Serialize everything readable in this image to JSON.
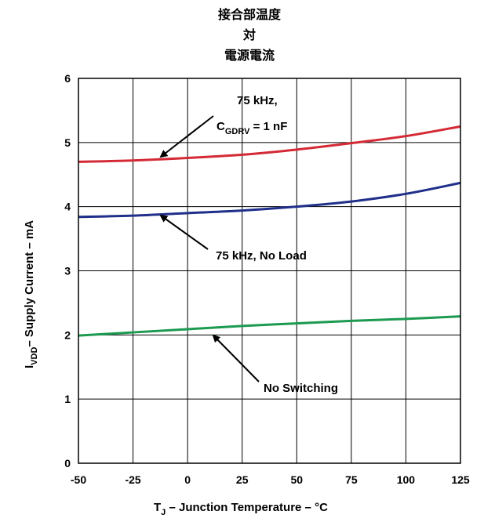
{
  "chart_data": {
    "type": "line",
    "title_lines": [
      "接合部温度",
      "対",
      "電源電流"
    ],
    "xlabel": {
      "main": "T",
      "sub": "J",
      "rest": " – Junction Temperature – °C"
    },
    "ylabel": {
      "main": "I",
      "sub": "VDD",
      "rest": "– Supply Current – mA"
    },
    "xlim": [
      -50,
      125
    ],
    "ylim": [
      0,
      6
    ],
    "x_ticks": [
      "-50",
      "-25",
      "0",
      "25",
      "50",
      "75",
      "100",
      "125"
    ],
    "y_ticks": [
      "0",
      "1",
      "2",
      "3",
      "4",
      "5",
      "6"
    ],
    "grid": true,
    "series": [
      {
        "color": "#d42a35",
        "x": [
          -50,
          -25,
          0,
          25,
          50,
          75,
          100,
          125
        ],
        "y": [
          4.7,
          4.72,
          4.76,
          4.81,
          4.89,
          4.99,
          5.1,
          5.25
        ]
      },
      {
        "color": "#1f2f8a",
        "x": [
          -50,
          -25,
          0,
          25,
          50,
          75,
          100,
          125
        ],
        "y": [
          3.84,
          3.86,
          3.9,
          3.94,
          4.0,
          4.08,
          4.2,
          4.37
        ]
      },
      {
        "color": "#1b9a50",
        "x": [
          -50,
          -25,
          0,
          25,
          50,
          75,
          100,
          125
        ],
        "y": [
          1.99,
          2.04,
          2.09,
          2.14,
          2.18,
          2.22,
          2.25,
          2.29
        ]
      }
    ],
    "annotations": {
      "red_line1": "75 kHz,",
      "red_line2_main": "C",
      "red_line2_sub": "GDRV",
      "red_line2_rest": " = 1 nF",
      "blue": "75 kHz, No Load",
      "green": "No Switching"
    }
  }
}
